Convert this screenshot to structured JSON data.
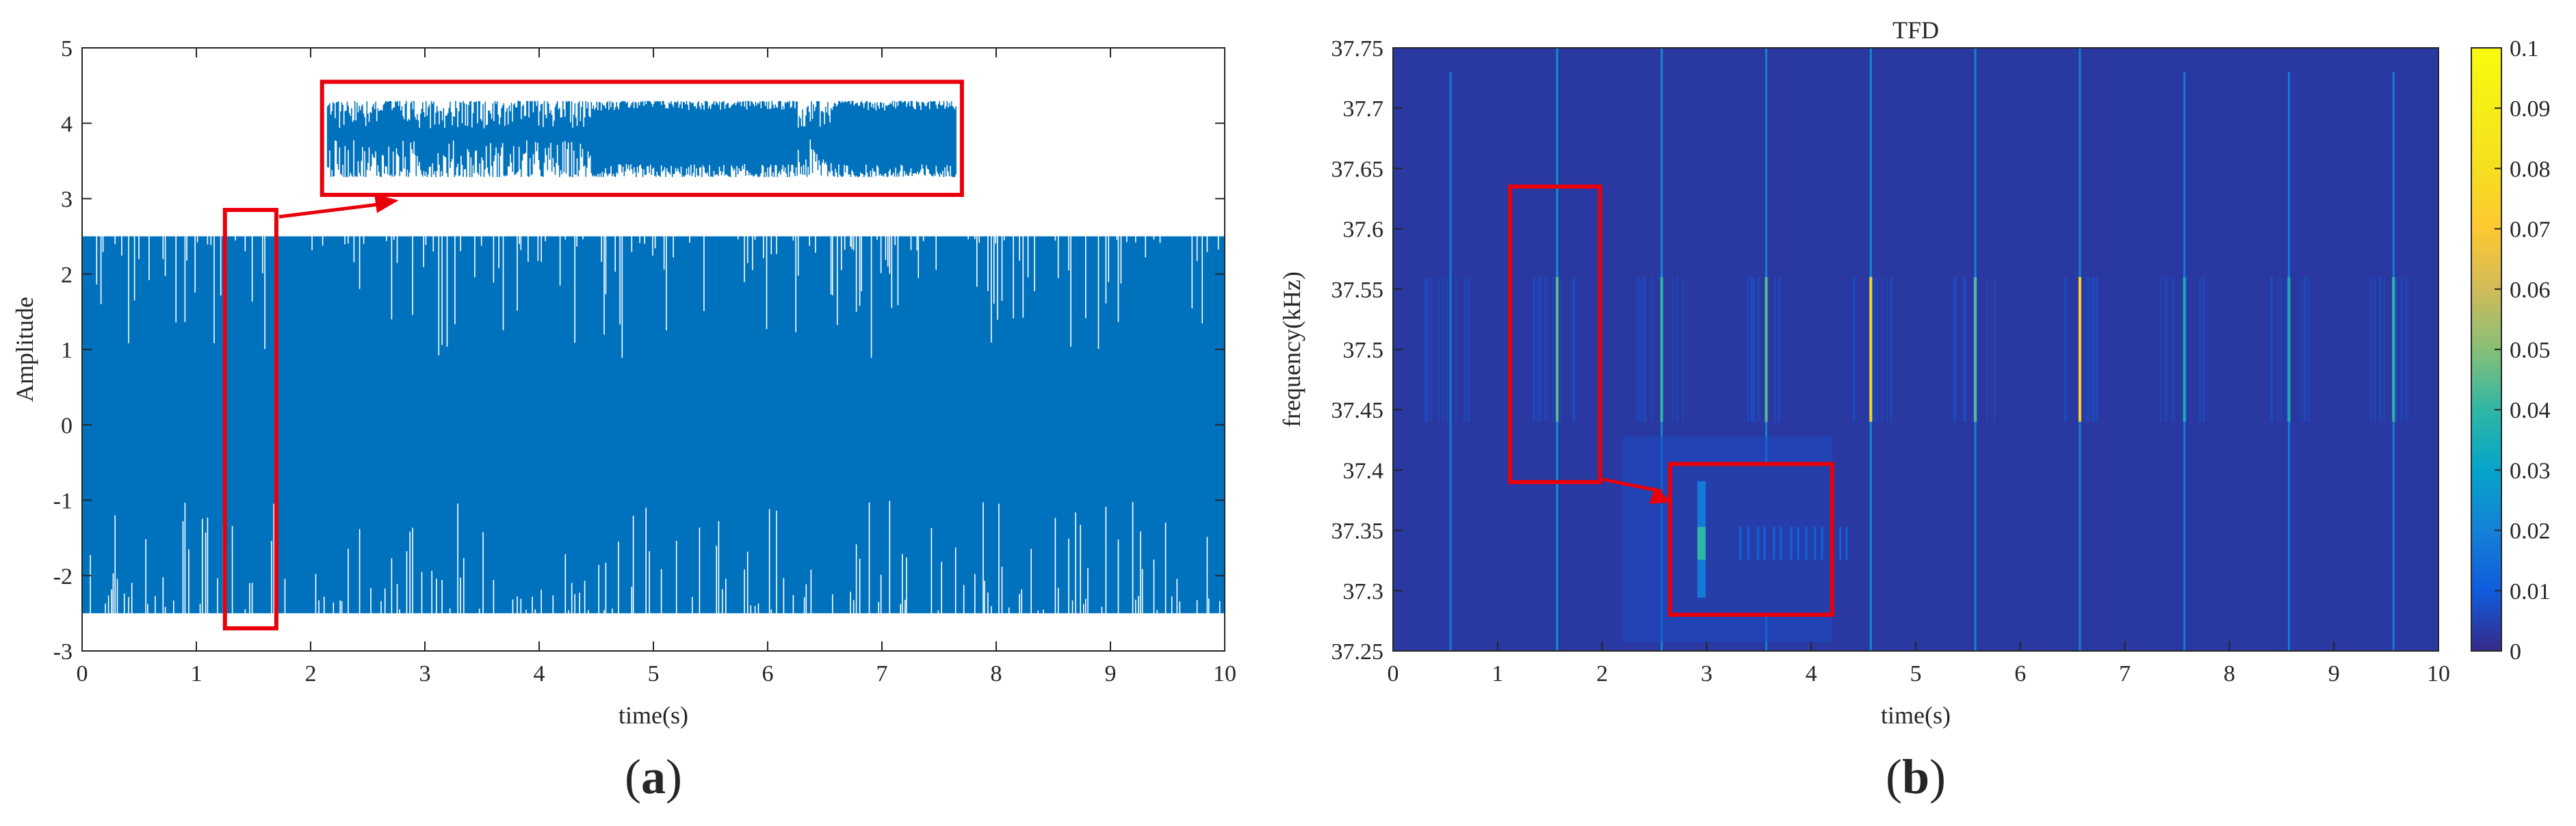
{
  "chart_data": [
    {
      "panel_label": {
        "open": "(",
        "letter": "a",
        "close": ")"
      },
      "type": "line",
      "title": "",
      "xlabel": "time(s)",
      "ylabel": "Amplitude",
      "xlim": [
        0,
        10
      ],
      "ylim": [
        -3,
        5
      ],
      "xticks": [
        0,
        1,
        2,
        3,
        4,
        5,
        6,
        7,
        8,
        9,
        10
      ],
      "yticks": [
        -3,
        -2,
        -1,
        0,
        1,
        2,
        3,
        4,
        5
      ],
      "grid": false,
      "series_color": "#0072BD",
      "signal_envelope": {
        "upper": 2.5,
        "lower": -2.5,
        "x_start": 0,
        "x_end": 10
      },
      "highlight_box": {
        "x": [
          1.25,
          1.7
        ],
        "y": [
          -2.7,
          2.85
        ],
        "color": "#E8000B"
      },
      "zoom_inset": {
        "x": [
          2.1,
          7.7
        ],
        "y": [
          3.05,
          4.55
        ],
        "color": "#E8000B"
      }
    },
    {
      "panel_label": {
        "open": "(",
        "letter": "b",
        "close": ")"
      },
      "type": "heatmap",
      "title": "TFD",
      "xlabel": "time(s)",
      "ylabel": "frequency(kHz)",
      "xlim": [
        0,
        10
      ],
      "ylim": [
        37.25,
        37.75
      ],
      "xticks": [
        0,
        1,
        2,
        3,
        4,
        5,
        6,
        7,
        8,
        9,
        10
      ],
      "yticks": [
        "37.25",
        "37.3",
        "37.35",
        "37.4",
        "37.45",
        "37.5",
        "37.55",
        "37.6",
        "37.65",
        "37.7",
        "37.75"
      ],
      "colorbar": {
        "range": [
          0,
          0.1
        ],
        "ticks": [
          "0",
          "0.01",
          "0.02",
          "0.03",
          "0.04",
          "0.05",
          "0.06",
          "0.07",
          "0.08",
          "0.09",
          "0.1"
        ],
        "colormap": "parula"
      },
      "background_value": 0.003,
      "events": [
        {
          "t": 0.55,
          "f_min": 37.25,
          "f_max": 37.73,
          "peak": 0.018
        },
        {
          "t": 1.57,
          "f_min": 37.25,
          "f_max": 37.75,
          "peak": 0.025
        },
        {
          "t": 2.57,
          "f_min": 37.25,
          "f_max": 37.75,
          "peak": 0.022
        },
        {
          "t": 3.57,
          "f_min": 37.25,
          "f_max": 37.75,
          "peak": 0.02
        },
        {
          "t": 4.57,
          "f_min": 37.25,
          "f_max": 37.75,
          "peak": 0.022
        },
        {
          "t": 5.57,
          "f_min": 37.25,
          "f_max": 37.75,
          "peak": 0.02
        },
        {
          "t": 6.57,
          "f_min": 37.25,
          "f_max": 37.75,
          "peak": 0.02
        },
        {
          "t": 7.57,
          "f_min": 37.25,
          "f_max": 37.73,
          "peak": 0.018
        },
        {
          "t": 8.57,
          "f_min": 37.25,
          "f_max": 37.73,
          "peak": 0.018
        },
        {
          "t": 9.57,
          "f_min": 37.25,
          "f_max": 37.73,
          "peak": 0.018
        }
      ],
      "hot_spots": [
        {
          "t": 1.57,
          "f_min": 37.44,
          "f_max": 37.56,
          "value": 0.045
        },
        {
          "t": 2.57,
          "f_min": 37.44,
          "f_max": 37.56,
          "value": 0.04
        },
        {
          "t": 3.57,
          "f_min": 37.44,
          "f_max": 37.56,
          "value": 0.045
        },
        {
          "t": 4.57,
          "f_min": 37.44,
          "f_max": 37.56,
          "value": 0.075
        },
        {
          "t": 5.57,
          "f_min": 37.44,
          "f_max": 37.56,
          "value": 0.045
        },
        {
          "t": 6.57,
          "f_min": 37.44,
          "f_max": 37.56,
          "value": 0.075
        },
        {
          "t": 7.57,
          "f_min": 37.44,
          "f_max": 37.56,
          "value": 0.035
        },
        {
          "t": 8.57,
          "f_min": 37.44,
          "f_max": 37.56,
          "value": 0.035
        },
        {
          "t": 9.57,
          "f_min": 37.44,
          "f_max": 37.56,
          "value": 0.04
        }
      ],
      "highlight_box": {
        "x": [
          1.12,
          1.98
        ],
        "y": [
          37.39,
          37.635
        ],
        "color": "#E8000B"
      },
      "zoom_inset": {
        "x": [
          2.65,
          4.2
        ],
        "y": [
          37.28,
          37.405
        ],
        "color": "#E8000B"
      }
    }
  ]
}
